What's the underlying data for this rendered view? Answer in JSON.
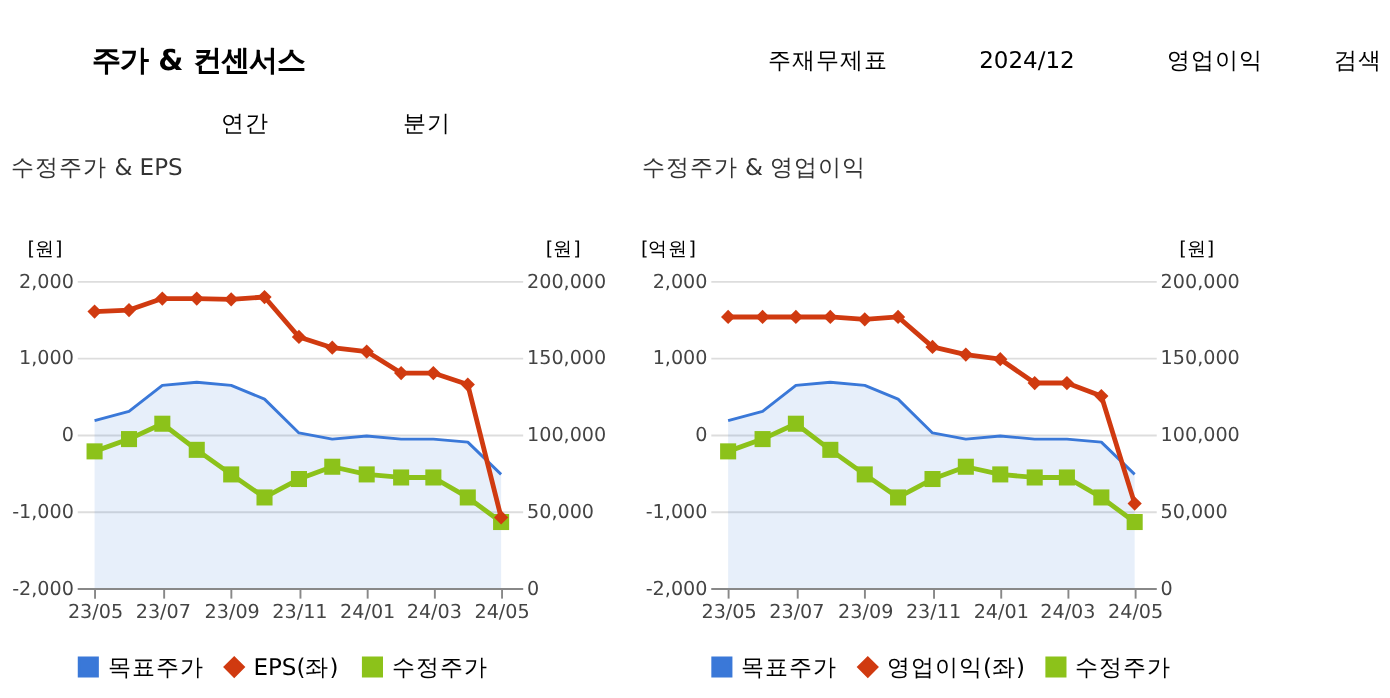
{
  "chart_data": [
    {
      "type": "other",
      "title": "주가 & 컨센서스",
      "annotations": [
        "주재무제표",
        "2024/12",
        "영업이익",
        "검색",
        "연간",
        "분기"
      ]
    },
    {
      "type": "line",
      "title": "수정주가 & EPS",
      "ylabel": "[원]",
      "y2label": "[원]",
      "x": [
        "2023-05",
        "2023-06",
        "2023-07",
        "2023-08",
        "2023-09",
        "2023-10",
        "2023-11",
        "2023-12",
        "2024-01",
        "2024-02",
        "2024-03",
        "2024-04",
        "2024-05"
      ],
      "xlim": [
        "2023-04-15",
        "2024-05-20"
      ],
      "xticks": [
        {
          "value": "2023-05",
          "label": "23/05"
        },
        {
          "value": "2023-07",
          "label": "23/07"
        },
        {
          "value": "2023-09",
          "label": "23/09"
        },
        {
          "value": "2023-11",
          "label": "23/11"
        },
        {
          "value": "2024-01",
          "label": "24/01"
        },
        {
          "value": "2024-03",
          "label": "24/03"
        },
        {
          "value": "2024-05",
          "label": "24/05"
        }
      ],
      "ylim": [
        -2000,
        2000
      ],
      "yticks": [
        {
          "value": -2000,
          "label": "-2,000"
        },
        {
          "value": -1000,
          "label": "-1,000"
        },
        0,
        {
          "value": 1000,
          "label": "1,000"
        },
        {
          "value": 2000,
          "label": "2,000"
        }
      ],
      "y2lim": [
        0,
        200000
      ],
      "y2ticks": [
        0,
        {
          "value": 50000,
          "label": "50,000"
        },
        {
          "value": 100000,
          "label": "100,000"
        },
        {
          "value": 150000,
          "label": "150,000"
        },
        {
          "value": 200000,
          "label": "200,000"
        }
      ],
      "grid": "y",
      "legend": "bottom",
      "series": [
        {
          "name": "목표주가",
          "type": "area",
          "axis": "y2",
          "color": "#3a78d8",
          "values": [
            109000,
            115000,
            132000,
            134000,
            132000,
            123000,
            101000,
            97000,
            99000,
            97000,
            97000,
            95000,
            74000
          ]
        },
        {
          "name": "EPS(좌)",
          "type": "line",
          "marker": "diamond",
          "color": "#d03a10",
          "values": [
            1600,
            1620,
            1770,
            1770,
            1760,
            1790,
            1270,
            1130,
            1080,
            800,
            800,
            650,
            -1080
          ]
        },
        {
          "name": "수정주가",
          "type": "line",
          "marker": "square",
          "axis": "y2",
          "color": "#8cc21a",
          "values": [
            89000,
            97000,
            107000,
            90000,
            74000,
            59000,
            71000,
            79000,
            74000,
            72000,
            72000,
            59000,
            43000
          ]
        }
      ]
    },
    {
      "type": "line",
      "title": "수정주가 & 영업이익",
      "ylabel": "[억원]",
      "y2label": "[원]",
      "x": [
        "2023-05",
        "2023-06",
        "2023-07",
        "2023-08",
        "2023-09",
        "2023-10",
        "2023-11",
        "2023-12",
        "2024-01",
        "2024-02",
        "2024-03",
        "2024-04",
        "2024-05"
      ],
      "xlim": [
        "2023-04-15",
        "2024-05-20"
      ],
      "xticks": [
        {
          "value": "2023-05",
          "label": "23/05"
        },
        {
          "value": "2023-07",
          "label": "23/07"
        },
        {
          "value": "2023-09",
          "label": "23/09"
        },
        {
          "value": "2023-11",
          "label": "23/11"
        },
        {
          "value": "2024-01",
          "label": "24/01"
        },
        {
          "value": "2024-03",
          "label": "24/03"
        },
        {
          "value": "2024-05",
          "label": "24/05"
        }
      ],
      "ylim": [
        -2000,
        2000
      ],
      "yticks": [
        {
          "value": -2000,
          "label": "-2,000"
        },
        {
          "value": -1000,
          "label": "-1,000"
        },
        0,
        {
          "value": 1000,
          "label": "1,000"
        },
        {
          "value": 2000,
          "label": "2,000"
        }
      ],
      "y2lim": [
        0,
        200000
      ],
      "y2ticks": [
        0,
        {
          "value": 50000,
          "label": "50,000"
        },
        {
          "value": 100000,
          "label": "100,000"
        },
        {
          "value": 150000,
          "label": "150,000"
        },
        {
          "value": 200000,
          "label": "200,000"
        }
      ],
      "grid": "y",
      "legend": "bottom",
      "series": [
        {
          "name": "목표주가",
          "type": "area",
          "axis": "y2",
          "color": "#3a78d8",
          "values": [
            109000,
            115000,
            132000,
            134000,
            132000,
            123000,
            101000,
            97000,
            99000,
            97000,
            97000,
            95000,
            74000
          ]
        },
        {
          "name": "영업이익(좌)",
          "type": "line",
          "marker": "diamond",
          "color": "#d03a10",
          "values": [
            1530,
            1530,
            1530,
            1530,
            1500,
            1530,
            1140,
            1040,
            980,
            670,
            670,
            500,
            -900
          ]
        },
        {
          "name": "수정주가",
          "type": "line",
          "marker": "square",
          "axis": "y2",
          "color": "#8cc21a",
          "values": [
            89000,
            97000,
            107000,
            90000,
            74000,
            59000,
            71000,
            79000,
            74000,
            72000,
            72000,
            59000,
            43000
          ]
        }
      ]
    }
  ]
}
